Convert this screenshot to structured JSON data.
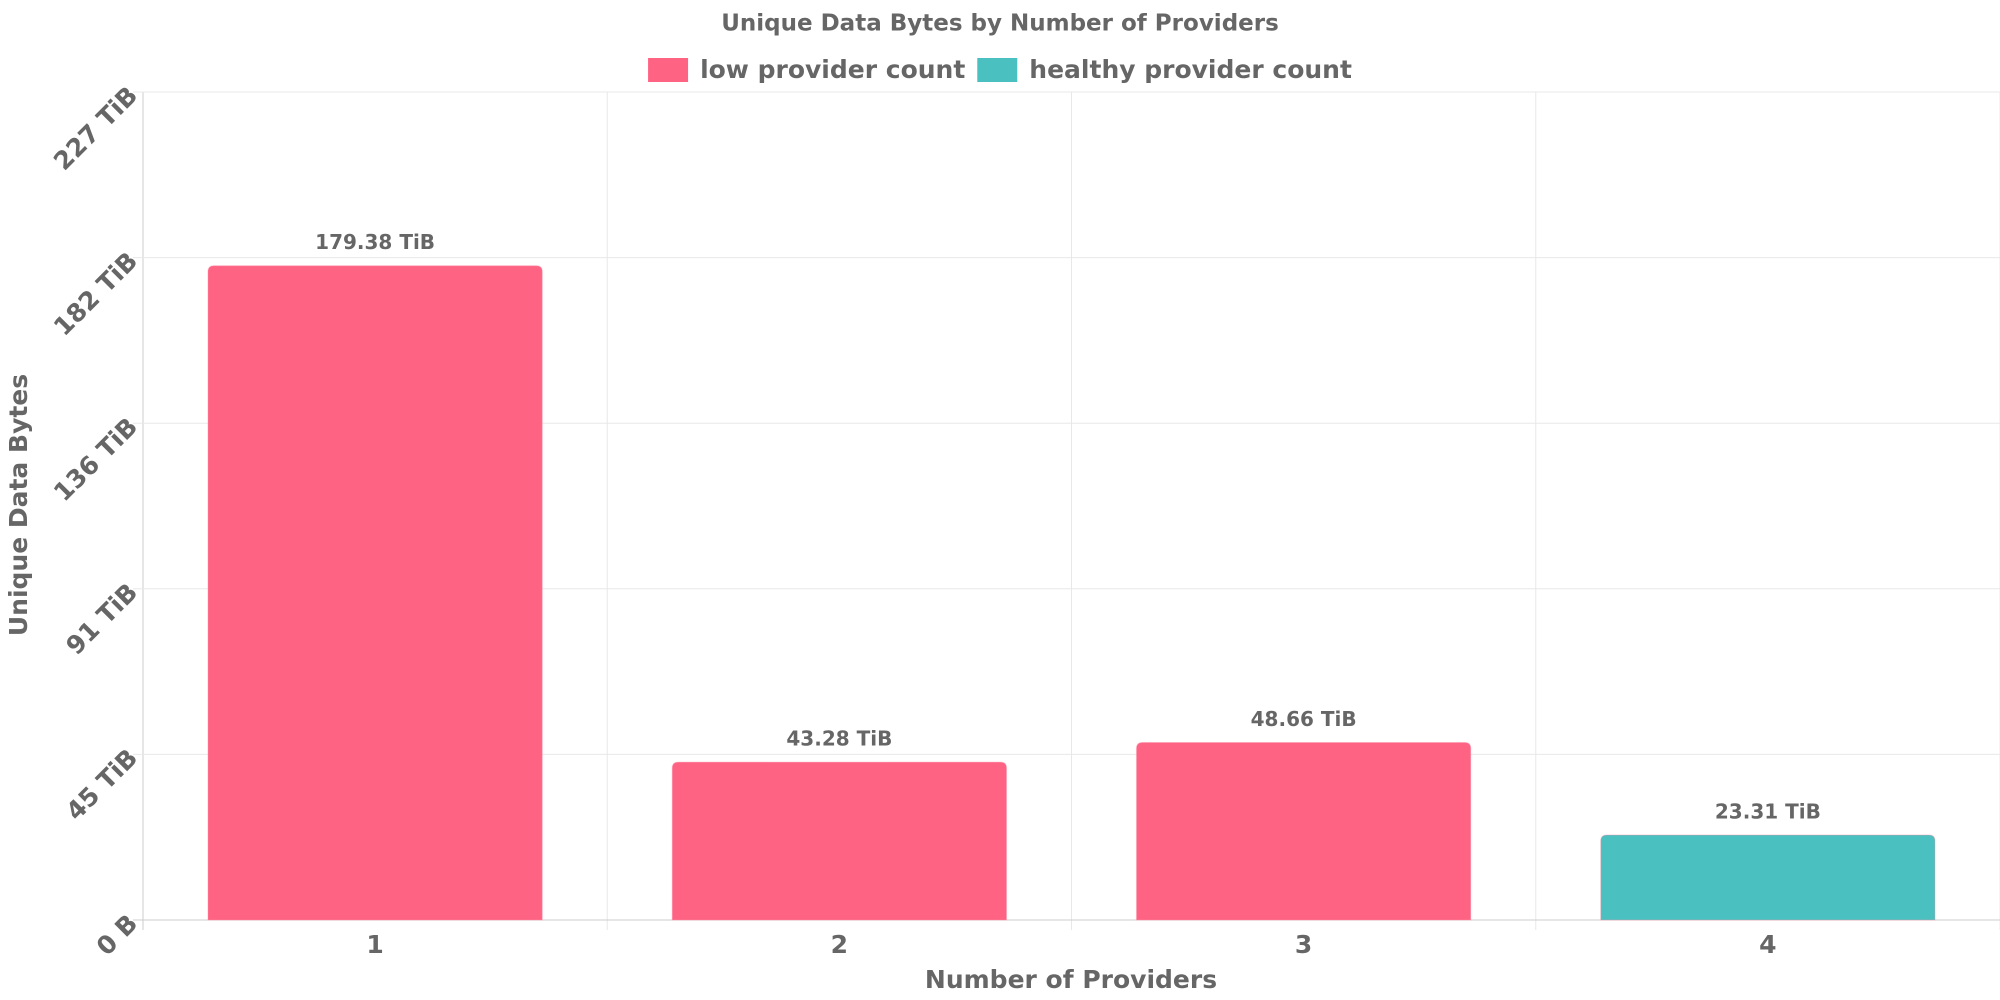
{
  "chart_data": {
    "type": "bar",
    "title": "Unique Data Bytes by Number of Providers",
    "x_label": "Number of Providers",
    "y_label": "Unique Data Bytes",
    "categories": [
      "1",
      "2",
      "3",
      "4"
    ],
    "series": [
      {
        "name": "low provider count",
        "color": "#ff6384",
        "values": [
          179.38,
          43.28,
          48.66,
          null
        ],
        "value_labels": [
          "179.38 TiB",
          "43.28 TiB",
          "48.66 TiB",
          null
        ]
      },
      {
        "name": "healthy provider count",
        "color": "#4bc0c0",
        "values": [
          null,
          null,
          null,
          23.31
        ],
        "value_labels": [
          null,
          null,
          null,
          "23.31 TiB"
        ]
      }
    ],
    "ylim": [
      0,
      227
    ],
    "yticks": [
      {
        "value": 0,
        "label": "0 B"
      },
      {
        "value": 45.4,
        "label": "45 TiB"
      },
      {
        "value": 90.8,
        "label": "91 TiB"
      },
      {
        "value": 136.2,
        "label": "136 TiB"
      },
      {
        "value": 181.6,
        "label": "182 TiB"
      },
      {
        "value": 227,
        "label": "227 TiB"
      }
    ],
    "grid": true,
    "legend": "top"
  }
}
